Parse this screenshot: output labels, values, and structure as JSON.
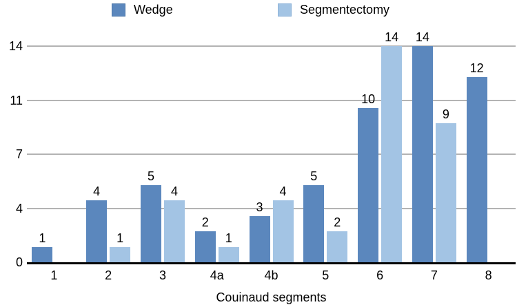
{
  "legend": {
    "items": [
      {
        "label": "Wedge",
        "color": "#5b87bd",
        "border": "#4b76a8"
      },
      {
        "label": "Segmentectomy",
        "color": "#a3c4e4",
        "border": "#8cb2d8"
      }
    ]
  },
  "chart_data": {
    "type": "bar",
    "title": "",
    "xlabel": "Couinaud segments",
    "ylabel": "",
    "categories": [
      "1",
      "2",
      "3",
      "4a",
      "4b",
      "5",
      "6",
      "7",
      "8"
    ],
    "series": [
      {
        "name": "Wedge",
        "color": "#5b87bd",
        "values": [
          1,
          4,
          5,
          2,
          3,
          5,
          10,
          14,
          12
        ]
      },
      {
        "name": "Segmentectomy",
        "color": "#a3c4e4",
        "values": [
          null,
          1,
          4,
          1,
          4,
          2,
          14,
          9,
          null
        ]
      }
    ],
    "ylim": [
      0,
      14
    ],
    "yticks": [
      {
        "value": 0,
        "label": "0"
      },
      {
        "value": 3.5,
        "label": "4"
      },
      {
        "value": 7,
        "label": "7"
      },
      {
        "value": 10.5,
        "label": "11"
      },
      {
        "value": 14,
        "label": "14"
      }
    ],
    "grid": true,
    "legend_position": "top",
    "bar_value_labels": true,
    "colors": {
      "gridline": "#b3b3b3",
      "axis": "#000000",
      "text": "#000000"
    }
  }
}
